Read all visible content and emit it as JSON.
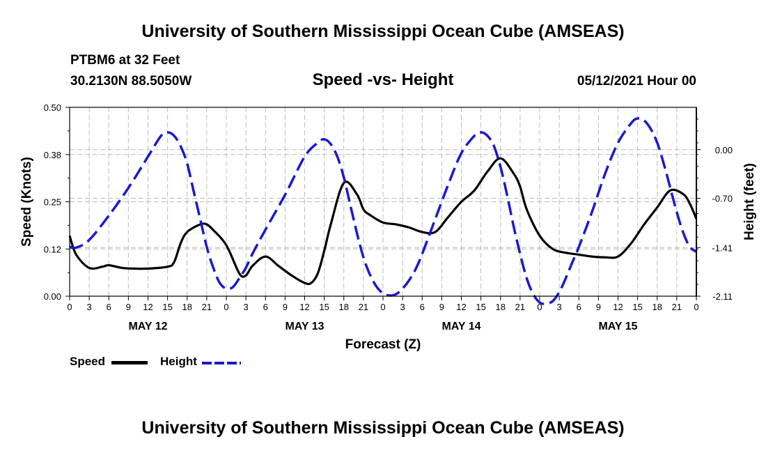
{
  "header": {
    "top_title": "University of Southern Mississippi Ocean Cube (AMSEAS)",
    "station": "PTBM6 at 32 Feet",
    "coords": "30.2130N  88.5050W",
    "chart_title": "Speed -vs- Height",
    "datetime": "05/12/2021 Hour 00",
    "bottom_title": "University of Southern Mississippi Ocean Cube (AMSEAS)"
  },
  "legend": {
    "speed_label": "Speed",
    "height_label": "Height"
  },
  "colors": {
    "speed": "#000000",
    "height": "#1a1acc",
    "grid": "#bbbbbb"
  },
  "chart_data": {
    "type": "line",
    "title": "Speed -vs- Height",
    "xlabel": "Forecast (Z)",
    "ylabel": "Speed (Knots)",
    "y2label": "Height (feet)",
    "xlim": [
      0,
      96
    ],
    "ylim": [
      0,
      0.5
    ],
    "y2lim": [
      -2.11,
      0.61
    ],
    "y_ticks": [
      "0.00",
      "0.12",
      "0.25",
      "0.38",
      "0.50"
    ],
    "y_tick_values": [
      0,
      0.125,
      0.25,
      0.375,
      0.5
    ],
    "y2_ticks": [
      "0.00",
      "-0.70",
      "-1.41",
      "-2.11"
    ],
    "y2_tick_values": [
      0,
      -0.7,
      -1.41,
      -2.11
    ],
    "x_tick_labels": [
      "0",
      "3",
      "6",
      "9",
      "12",
      "15",
      "18",
      "21",
      "0",
      "3",
      "6",
      "9",
      "12",
      "15",
      "18",
      "21",
      "0",
      "3",
      "6",
      "9",
      "12",
      "15",
      "18",
      "21",
      "0",
      "3",
      "6",
      "9",
      "12",
      "15",
      "18",
      "21",
      "0"
    ],
    "x_tick_hours": [
      0,
      3,
      6,
      9,
      12,
      15,
      18,
      21,
      24,
      27,
      30,
      33,
      36,
      39,
      42,
      45,
      48,
      51,
      54,
      57,
      60,
      63,
      66,
      69,
      72,
      75,
      78,
      81,
      84,
      87,
      90,
      93,
      96
    ],
    "day_labels": [
      "MAY 12",
      "MAY 13",
      "MAY 14",
      "MAY 15"
    ],
    "day_label_hours": [
      12,
      36,
      60,
      84
    ],
    "series": [
      {
        "name": "Speed",
        "axis": "left",
        "style": "solid",
        "x": [
          0,
          1,
          3,
          5,
          6,
          8,
          10,
          12,
          15,
          16,
          17,
          18,
          20,
          21,
          22,
          24,
          26,
          27,
          28,
          30,
          32,
          34,
          36,
          37,
          38,
          39,
          40,
          42,
          44,
          45,
          46,
          48,
          50,
          52,
          54,
          56,
          58,
          60,
          62,
          64,
          66,
          68,
          69,
          70,
          72,
          74,
          76,
          78,
          80,
          82,
          84,
          86,
          88,
          90,
          92,
          94,
          95,
          96
        ],
        "y": [
          0.16,
          0.11,
          0.075,
          0.078,
          0.082,
          0.075,
          0.073,
          0.073,
          0.078,
          0.09,
          0.14,
          0.17,
          0.19,
          0.19,
          0.175,
          0.135,
          0.06,
          0.055,
          0.08,
          0.105,
          0.08,
          0.055,
          0.035,
          0.035,
          0.06,
          0.12,
          0.19,
          0.3,
          0.27,
          0.23,
          0.215,
          0.195,
          0.19,
          0.182,
          0.17,
          0.17,
          0.21,
          0.25,
          0.28,
          0.33,
          0.365,
          0.325,
          0.29,
          0.23,
          0.16,
          0.125,
          0.115,
          0.11,
          0.105,
          0.103,
          0.105,
          0.14,
          0.19,
          0.235,
          0.28,
          0.27,
          0.245,
          0.205
        ]
      },
      {
        "name": "Height",
        "axis": "right",
        "style": "dashed",
        "x": [
          0,
          1,
          3,
          6,
          9,
          12,
          14,
          15,
          16,
          17,
          18,
          19,
          20,
          21,
          22,
          23,
          24,
          25,
          26,
          27,
          28,
          30,
          33,
          36,
          38,
          39,
          40,
          41,
          42,
          43,
          44,
          45,
          46,
          47,
          48,
          49,
          50,
          51,
          52,
          53,
          54,
          56,
          58,
          60,
          62,
          63,
          64,
          65,
          66,
          67,
          68,
          69,
          70,
          71,
          72,
          73,
          74,
          75,
          76,
          77,
          78,
          80,
          82,
          84,
          86,
          87,
          88,
          89,
          90,
          91,
          92,
          93,
          94,
          95,
          96
        ],
        "y": [
          -1.4,
          -1.41,
          -1.3,
          -0.95,
          -0.55,
          -0.1,
          0.2,
          0.25,
          0.2,
          0.05,
          -0.2,
          -0.6,
          -1.0,
          -1.4,
          -1.7,
          -1.92,
          -2.0,
          -1.98,
          -1.85,
          -1.7,
          -1.5,
          -1.15,
          -0.65,
          -0.1,
          0.1,
          0.15,
          0.08,
          -0.1,
          -0.4,
          -0.8,
          -1.2,
          -1.55,
          -1.8,
          -1.97,
          -2.07,
          -2.1,
          -2.08,
          -2.0,
          -1.88,
          -1.72,
          -1.5,
          -1.0,
          -0.5,
          -0.05,
          0.2,
          0.25,
          0.2,
          0.05,
          -0.25,
          -0.65,
          -1.1,
          -1.5,
          -1.85,
          -2.08,
          -2.2,
          -2.22,
          -2.18,
          -2.05,
          -1.85,
          -1.62,
          -1.4,
          -0.9,
          -0.35,
          0.1,
          0.38,
          0.45,
          0.42,
          0.3,
          0.1,
          -0.2,
          -0.55,
          -0.9,
          -1.2,
          -1.4,
          -1.47
        ]
      }
    ],
    "grid": true
  }
}
